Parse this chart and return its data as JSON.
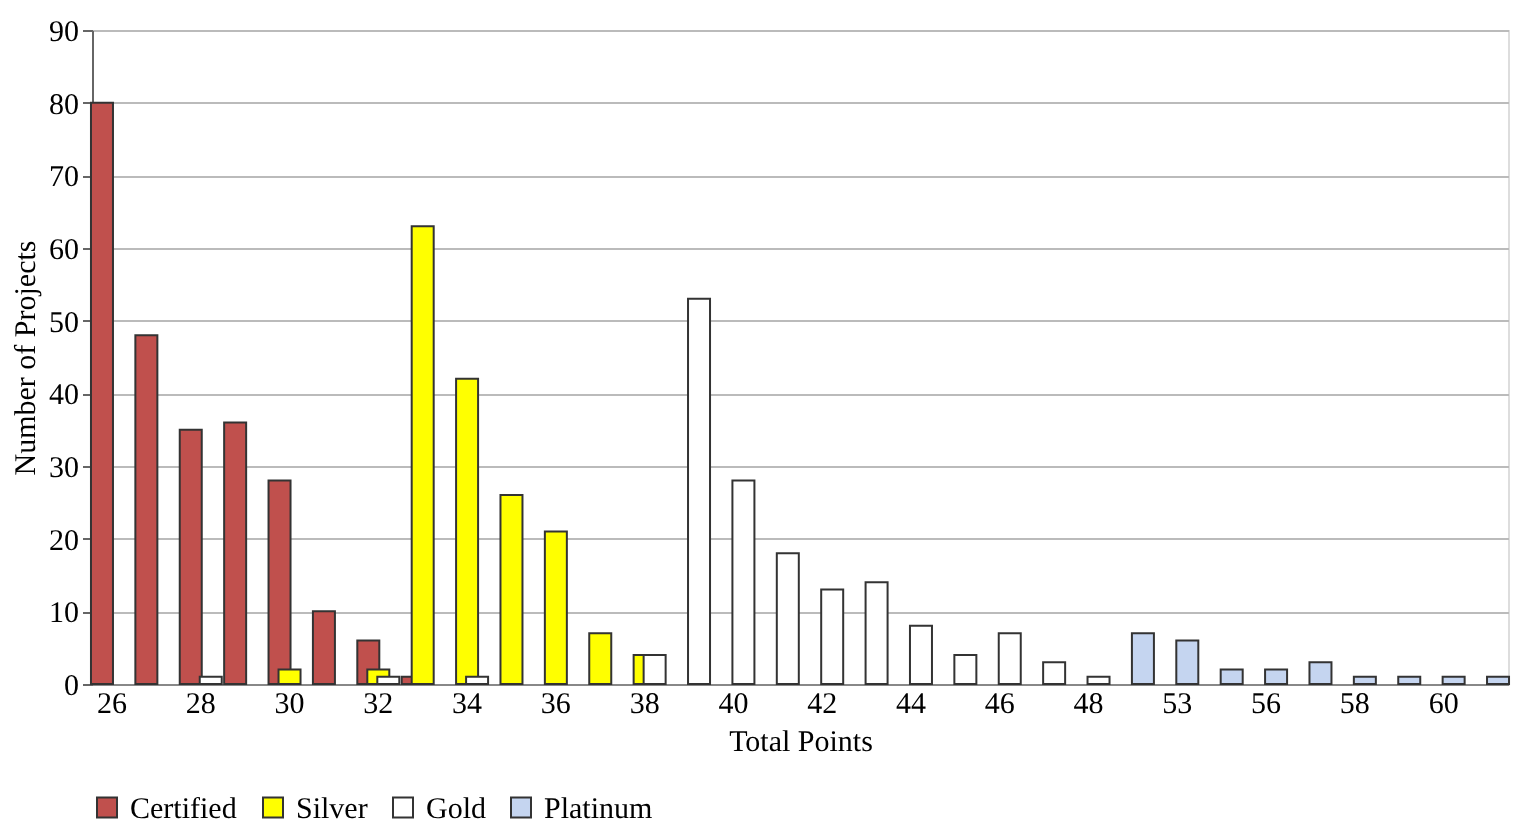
{
  "chart_data": {
    "type": "bar",
    "xlabel": "Total Points",
    "ylabel": "Number of Projects",
    "categories": [
      "26",
      null,
      "28",
      null,
      "30",
      null,
      "32",
      null,
      "34",
      null,
      "36",
      null,
      "38",
      null,
      "40",
      null,
      "42",
      null,
      "44",
      null,
      "46",
      null,
      "48",
      null,
      "53",
      null,
      "56",
      null,
      "58",
      null,
      "60",
      null
    ],
    "series": [
      {
        "name": "Certified",
        "color": "#c0504d",
        "values": [
          80,
          48,
          35,
          36,
          28,
          10,
          6,
          1,
          null,
          null,
          null,
          null,
          null,
          null,
          null,
          null,
          null,
          null,
          null,
          null,
          null,
          null,
          null,
          null,
          null,
          null,
          null,
          null,
          null,
          null,
          null,
          null
        ]
      },
      {
        "name": "Silver",
        "color": "#ffff00",
        "values": [
          null,
          null,
          null,
          null,
          2,
          null,
          2,
          63,
          42,
          26,
          21,
          7,
          4,
          null,
          null,
          null,
          null,
          null,
          null,
          null,
          null,
          null,
          null,
          null,
          null,
          null,
          null,
          null,
          null,
          null,
          null,
          null
        ]
      },
      {
        "name": "Gold",
        "color": "#ffffff",
        "values": [
          null,
          null,
          1,
          null,
          null,
          null,
          1,
          null,
          1,
          null,
          null,
          null,
          4,
          53,
          28,
          18,
          13,
          14,
          8,
          4,
          7,
          3,
          1,
          null,
          null,
          null,
          null,
          null,
          null,
          null,
          null,
          null
        ]
      },
      {
        "name": "Platinum",
        "color": "#c5d5f0",
        "values": [
          null,
          null,
          null,
          null,
          null,
          null,
          null,
          null,
          null,
          null,
          null,
          null,
          null,
          null,
          null,
          null,
          null,
          null,
          null,
          null,
          null,
          null,
          null,
          7,
          6,
          2,
          2,
          3,
          1,
          1,
          1,
          1
        ]
      }
    ],
    "ylim": [
      0,
      90
    ],
    "yticks": [
      0,
      10,
      20,
      30,
      40,
      50,
      60,
      70,
      80,
      90
    ],
    "grid": "y",
    "legend": "bottom"
  }
}
